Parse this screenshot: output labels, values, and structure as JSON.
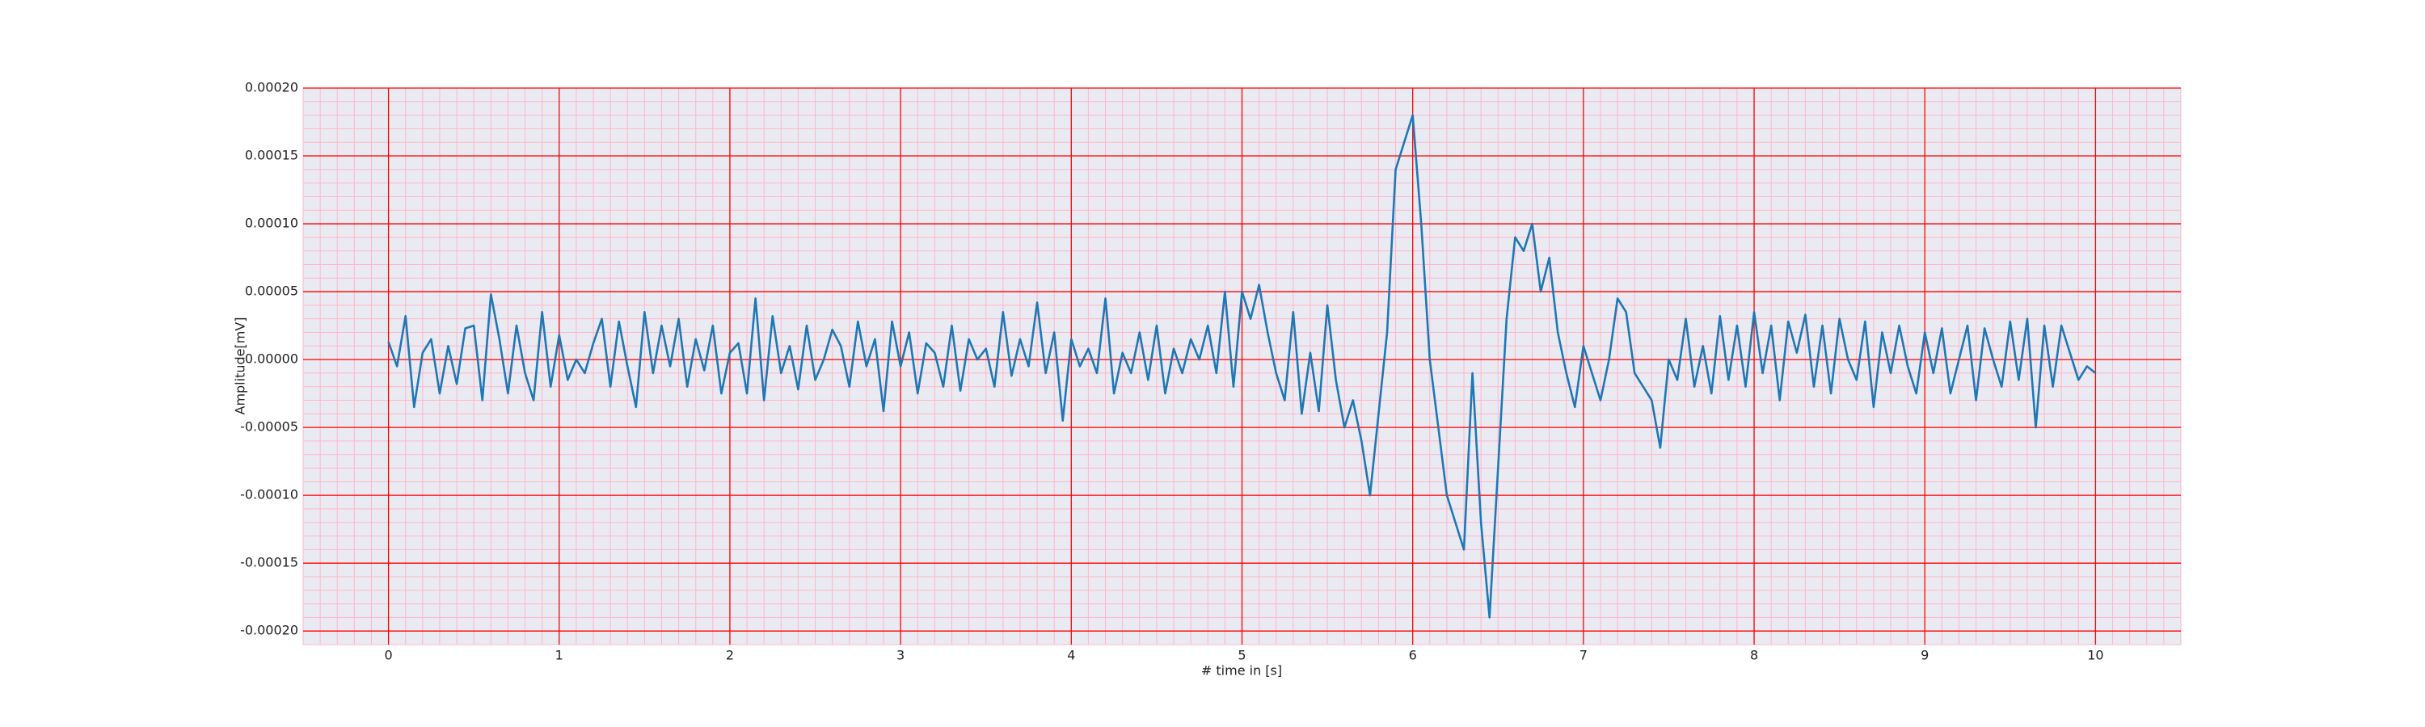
{
  "chart_data": {
    "type": "line",
    "xlabel": "# time in [s]",
    "ylabel": "Amplitude[mV]",
    "xlim": [
      -0.5,
      10.5
    ],
    "xticks": [
      0,
      1,
      2,
      3,
      4,
      5,
      6,
      7,
      8,
      9,
      10
    ],
    "ylim": [
      -0.00021,
      0.0002
    ],
    "yticks": [
      {
        "value": -0.0002,
        "label": "-0.00020"
      },
      {
        "value": -0.00015,
        "label": "-0.00015"
      },
      {
        "value": -0.0001,
        "label": "-0.00010"
      },
      {
        "value": -5e-05,
        "label": "-0.00005"
      },
      {
        "value": 0,
        "label": "0.00000"
      },
      {
        "value": 5e-05,
        "label": "0.00005"
      },
      {
        "value": 0.0001,
        "label": "0.00010"
      },
      {
        "value": 0.00015,
        "label": "0.00015"
      },
      {
        "value": 0.0002,
        "label": "0.00020"
      }
    ],
    "grid": true,
    "grid_color": "#ff0000",
    "minor_grid": {
      "x": 10,
      "y": 5,
      "color": "#ffb6c8"
    },
    "background": "#eaeaf2",
    "x": [
      0,
      0.05,
      0.1,
      0.15,
      0.2,
      0.25,
      0.3,
      0.35,
      0.4,
      0.45,
      0.5,
      0.55,
      0.6,
      0.65,
      0.7,
      0.75,
      0.8,
      0.85,
      0.9,
      0.95,
      1,
      1.05,
      1.1,
      1.15,
      1.2,
      1.25,
      1.3,
      1.35,
      1.4,
      1.45,
      1.5,
      1.55,
      1.6,
      1.65,
      1.7,
      1.75,
      1.8,
      1.85,
      1.9,
      1.95,
      2,
      2.05,
      2.1,
      2.15,
      2.2,
      2.25,
      2.3,
      2.35,
      2.4,
      2.45,
      2.5,
      2.55,
      2.6,
      2.65,
      2.7,
      2.75,
      2.8,
      2.85,
      2.9,
      2.95,
      3,
      3.05,
      3.1,
      3.15,
      3.2,
      3.25,
      3.3,
      3.35,
      3.4,
      3.45,
      3.5,
      3.55,
      3.6,
      3.65,
      3.7,
      3.75,
      3.8,
      3.85,
      3.9,
      3.95,
      4,
      4.05,
      4.1,
      4.15,
      4.2,
      4.25,
      4.3,
      4.35,
      4.4,
      4.45,
      4.5,
      4.55,
      4.6,
      4.65,
      4.7,
      4.75,
      4.8,
      4.85,
      4.9,
      4.95,
      5,
      5.05,
      5.1,
      5.15,
      5.2,
      5.25,
      5.3,
      5.35,
      5.4,
      5.45,
      5.5,
      5.55,
      5.6,
      5.65,
      5.7,
      5.75,
      5.8,
      5.85,
      5.9,
      5.95,
      6,
      6.05,
      6.1,
      6.15,
      6.2,
      6.25,
      6.3,
      6.35,
      6.4,
      6.45,
      6.5,
      6.55,
      6.6,
      6.65,
      6.7,
      6.75,
      6.8,
      6.85,
      6.9,
      6.95,
      7,
      7.05,
      7.1,
      7.15,
      7.2,
      7.25,
      7.3,
      7.35,
      7.4,
      7.45,
      7.5,
      7.55,
      7.6,
      7.65,
      7.7,
      7.75,
      7.8,
      7.85,
      7.9,
      7.95,
      8,
      8.05,
      8.1,
      8.15,
      8.2,
      8.25,
      8.3,
      8.35,
      8.4,
      8.45,
      8.5,
      8.55,
      8.6,
      8.65,
      8.7,
      8.75,
      8.8,
      8.85,
      8.9,
      8.95,
      9,
      9.05,
      9.1,
      9.15,
      9.2,
      9.25,
      9.3,
      9.35,
      9.4,
      9.45,
      9.5,
      9.55,
      9.6,
      9.65,
      9.7,
      9.75,
      9.8,
      9.85,
      9.9,
      9.95,
      10
    ],
    "series": [
      {
        "color": "#1f77b4",
        "values": [
          1.3e-05,
          -5e-06,
          3.2e-05,
          -3.5e-05,
          5e-06,
          1.5e-05,
          -2.5e-05,
          1e-05,
          -1.8e-05,
          2.3e-05,
          2.5e-05,
          -3e-05,
          4.8e-05,
          1.5e-05,
          -2.5e-05,
          2.5e-05,
          -1e-05,
          -3e-05,
          3.5e-05,
          -2e-05,
          1.8e-05,
          -1.5e-05,
          0,
          -1e-05,
          1.2e-05,
          3e-05,
          -2e-05,
          2.8e-05,
          -5e-06,
          -3.5e-05,
          3.5e-05,
          -1e-05,
          2.5e-05,
          -5e-06,
          3e-05,
          -2e-05,
          1.5e-05,
          -8e-06,
          2.5e-05,
          -2.5e-05,
          5e-06,
          1.2e-05,
          -2.5e-05,
          4.5e-05,
          -3e-05,
          3.2e-05,
          -1e-05,
          1e-05,
          -2.2e-05,
          2.5e-05,
          -1.5e-05,
          0,
          2.2e-05,
          1e-05,
          -2e-05,
          2.8e-05,
          -5e-06,
          1.5e-05,
          -3.8e-05,
          2.8e-05,
          -5e-06,
          2e-05,
          -2.5e-05,
          1.2e-05,
          5e-06,
          -2e-05,
          2.5e-05,
          -2.3e-05,
          1.5e-05,
          0,
          8e-06,
          -2e-05,
          3.5e-05,
          -1.2e-05,
          1.5e-05,
          -5e-06,
          4.2e-05,
          -1e-05,
          2e-05,
          -4.5e-05,
          1.5e-05,
          -5e-06,
          8e-06,
          -1e-05,
          4.5e-05,
          -2.5e-05,
          5e-06,
          -1e-05,
          2e-05,
          -1.5e-05,
          2.5e-05,
          -2.5e-05,
          8e-06,
          -1e-05,
          1.5e-05,
          0,
          2.5e-05,
          -1e-05,
          5e-05,
          -2e-05,
          5e-05,
          3e-05,
          5.5e-05,
          2e-05,
          -1e-05,
          -3e-05,
          3.5e-05,
          -4e-05,
          5e-06,
          -3.8e-05,
          4e-05,
          -1.5e-05,
          -5e-05,
          -3e-05,
          -6e-05,
          -0.0001,
          -4e-05,
          2e-05,
          0.00014,
          0.00016,
          0.00018,
          0.0001,
          0,
          -5e-05,
          -0.0001,
          -0.00012,
          -0.00014,
          -1e-05,
          -0.00012,
          -0.00019,
          -8e-05,
          3e-05,
          9e-05,
          8e-05,
          0.0001,
          5e-05,
          7.5e-05,
          2e-05,
          -1e-05,
          -3.5e-05,
          1e-05,
          -1e-05,
          -3e-05,
          0,
          4.5e-05,
          3.5e-05,
          -1e-05,
          -2e-05,
          -3e-05,
          -6.5e-05,
          0,
          -1.5e-05,
          3e-05,
          -2e-05,
          1e-05,
          -2.5e-05,
          3.2e-05,
          -1.5e-05,
          2.5e-05,
          -2e-05,
          3.5e-05,
          -1e-05,
          2.5e-05,
          -3e-05,
          2.8e-05,
          5e-06,
          3.3e-05,
          -2e-05,
          2.5e-05,
          -2.5e-05,
          3e-05,
          0,
          -1.5e-05,
          2.8e-05,
          -3.5e-05,
          2e-05,
          -1e-05,
          2.5e-05,
          -5e-06,
          -2.5e-05,
          2e-05,
          -1e-05,
          2.3e-05,
          -2.5e-05,
          0,
          2.5e-05,
          -3e-05,
          2.3e-05,
          0,
          -2e-05,
          2.8e-05,
          -1.5e-05,
          3e-05,
          -5e-05,
          2.5e-05,
          -2e-05,
          2.5e-05,
          5e-06,
          -1.5e-05,
          -5e-06,
          -1e-05
        ]
      }
    ]
  }
}
